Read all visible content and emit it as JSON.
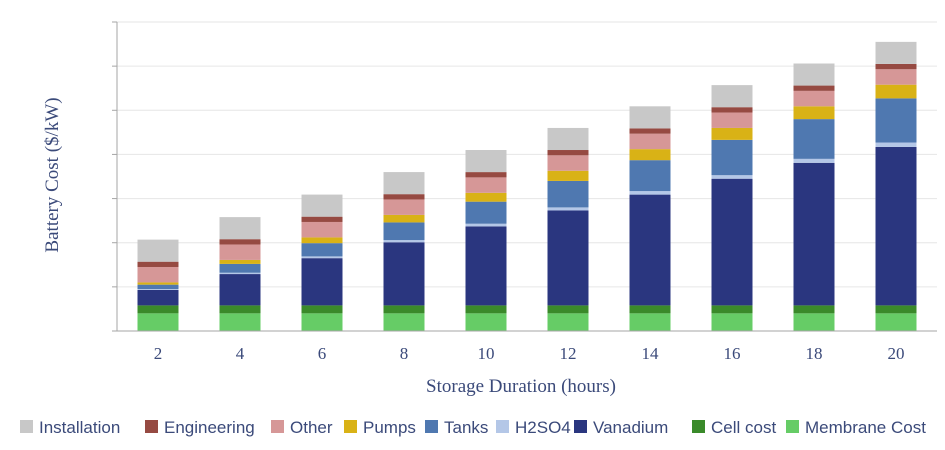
{
  "chart_data": {
    "type": "bar",
    "stacked": true,
    "title": "",
    "xlabel": "Storage Duration (hours)",
    "ylabel": "Battery Cost ($/kW)",
    "ytick_labels_visible": false,
    "grid": true,
    "legend_position": "bottom",
    "ylim": [
      0,
      7.0
    ],
    "categories": [
      "2",
      "4",
      "6",
      "8",
      "10",
      "12",
      "14",
      "16",
      "18",
      "20"
    ],
    "series": [
      {
        "name": "Membrane Cost",
        "color": "#66cc66",
        "values": [
          0.4,
          0.4,
          0.4,
          0.4,
          0.4,
          0.4,
          0.4,
          0.4,
          0.4,
          0.4
        ]
      },
      {
        "name": "Cell cost",
        "color": "#3a8a2a",
        "values": [
          0.18,
          0.18,
          0.18,
          0.18,
          0.18,
          0.18,
          0.18,
          0.18,
          0.18,
          0.18
        ]
      },
      {
        "name": "Vanadium",
        "color": "#2a367f",
        "values": [
          0.35,
          0.71,
          1.07,
          1.43,
          1.79,
          2.15,
          2.51,
          2.87,
          3.23,
          3.59
        ]
      },
      {
        "name": "H2SO4",
        "color": "#b4c7e7",
        "values": [
          0.02,
          0.03,
          0.04,
          0.05,
          0.06,
          0.07,
          0.08,
          0.08,
          0.09,
          0.1
        ]
      },
      {
        "name": "Tanks",
        "color": "#4f78b0",
        "values": [
          0.1,
          0.2,
          0.3,
          0.4,
          0.5,
          0.6,
          0.7,
          0.8,
          0.9,
          1.0
        ]
      },
      {
        "name": "Pumps",
        "color": "#d9b216",
        "values": [
          0.05,
          0.09,
          0.13,
          0.17,
          0.2,
          0.23,
          0.25,
          0.27,
          0.29,
          0.31
        ]
      },
      {
        "name": "Other",
        "color": "#d69797",
        "values": [
          0.35,
          0.35,
          0.35,
          0.35,
          0.35,
          0.35,
          0.35,
          0.35,
          0.35,
          0.35
        ]
      },
      {
        "name": "Engineering",
        "color": "#964a42",
        "values": [
          0.12,
          0.12,
          0.12,
          0.12,
          0.12,
          0.12,
          0.12,
          0.12,
          0.12,
          0.12
        ]
      },
      {
        "name": "Installation",
        "color": "#c8c8c8",
        "values": [
          0.5,
          0.5,
          0.5,
          0.5,
          0.5,
          0.5,
          0.5,
          0.5,
          0.5,
          0.5
        ]
      }
    ],
    "legend_order": [
      "Installation",
      "Engineering",
      "Other",
      "Pumps",
      "Tanks",
      "H2SO4",
      "Vanadium",
      "Cell cost",
      "Membrane Cost"
    ]
  },
  "colors": {
    "axis_text": "#3b4a7a",
    "gridline": "#e6e6e6",
    "axis_line": "#a6a6a6"
  }
}
